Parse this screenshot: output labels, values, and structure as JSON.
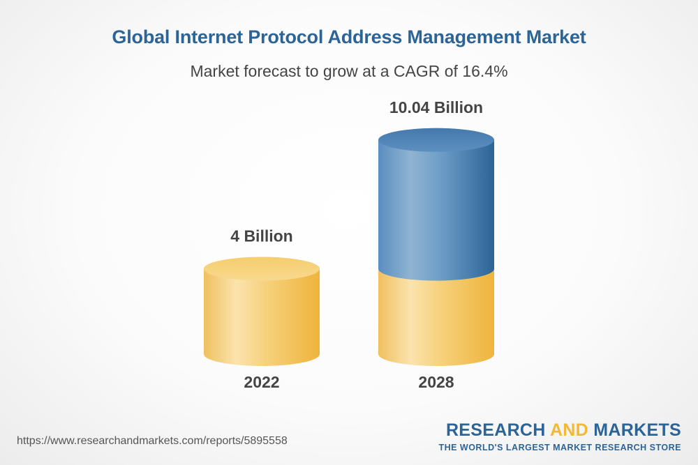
{
  "colors": {
    "title": "#2d6496",
    "base_segment": "#f3c14f",
    "growth_segment": "#4f86b8",
    "label_text": "#444444"
  },
  "footer": {
    "url": "https://www.researchandmarkets.com/reports/5895558",
    "brand_word1": "RESEARCH ",
    "brand_word2": "AND",
    "brand_word3": " MARKETS",
    "tagline": "THE WORLD'S LARGEST MARKET RESEARCH STORE"
  },
  "chart_data": {
    "type": "bar",
    "title": "Global Internet Protocol Address Management Market",
    "subtitle": "Market forecast to grow at a CAGR of 16.4%",
    "categories": [
      "2022",
      "2028"
    ],
    "values": [
      4,
      10.04
    ],
    "value_labels": [
      "4 Billion",
      "10.04 Billion"
    ],
    "unit": "Billion",
    "style": "3d-cylinder",
    "growth_highlight": true
  }
}
